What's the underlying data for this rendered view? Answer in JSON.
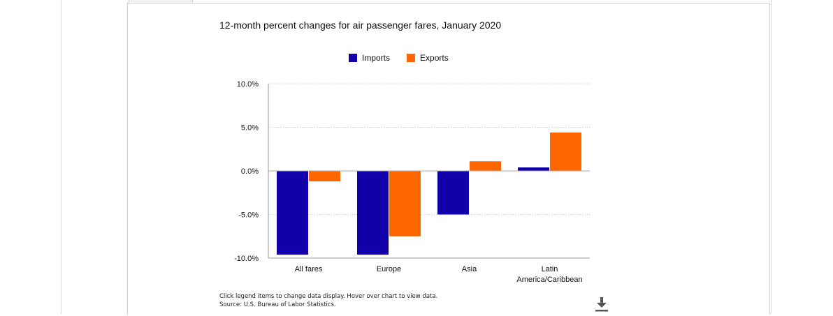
{
  "chart_data": {
    "type": "bar",
    "title": "12-month percent changes for air passenger fares, January 2020",
    "categories": [
      "All fares",
      "Europe",
      "Asia",
      "Latin America/Caribbean"
    ],
    "category_label_lines": [
      [
        "All fares"
      ],
      [
        "Europe"
      ],
      [
        "Asia"
      ],
      [
        "Latin",
        "America/Caribbean"
      ]
    ],
    "series": [
      {
        "name": "Imports",
        "color": "#1100aa",
        "values": [
          -9.6,
          -9.6,
          -5.0,
          0.4
        ]
      },
      {
        "name": "Exports",
        "color": "#ff6600",
        "values": [
          -1.2,
          -7.5,
          1.1,
          4.4
        ]
      }
    ],
    "ylim": [
      -10,
      10
    ],
    "yticks": [
      10,
      5,
      0,
      -5,
      -10
    ],
    "ytick_labels": [
      "10.0%",
      "5.0%",
      "0.0%",
      "-5.0%",
      "-10.0%"
    ],
    "grid": true,
    "legend_position": "top-center",
    "xlabel": "",
    "ylabel": ""
  },
  "footnote": {
    "line1": "Click legend items to change data display. Hover over chart to view data.",
    "line2": "Source: U.S. Bureau of Labor Statistics."
  },
  "icons": {
    "download": "download-icon"
  }
}
